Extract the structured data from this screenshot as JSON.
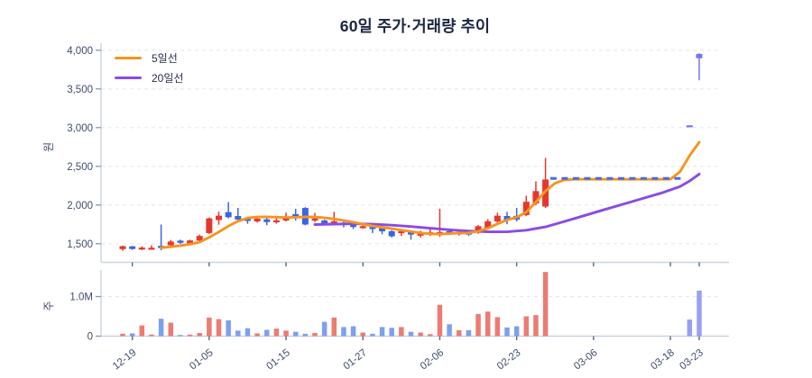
{
  "title": "60일 주가·거래량 추이",
  "legend": {
    "items": [
      {
        "label": "5일선",
        "color": "#f7941e"
      },
      {
        "label": "20일선",
        "color": "#8a4ae6"
      }
    ]
  },
  "price_axis": {
    "unit_label": "원",
    "tick_labels": [
      "4,000",
      "3,500",
      "3,000",
      "2,500",
      "2,000",
      "1,500"
    ],
    "tick_values": [
      4000,
      3500,
      3000,
      2500,
      2000,
      1500
    ]
  },
  "volume_axis": {
    "unit_label": "주",
    "tick_labels": [
      "1.0M",
      "0"
    ],
    "tick_values": [
      1.0,
      0
    ]
  },
  "x_axis": {
    "tick_labels": [
      "12-19",
      "01-05",
      "01-15",
      "01-27",
      "02-06",
      "02-23",
      "03-06",
      "03-18",
      "03-23"
    ],
    "tick_slots": [
      1,
      9,
      17,
      25,
      33,
      41,
      49,
      57,
      60
    ]
  },
  "colors": {
    "up": "#e8362d",
    "down": "#3c64e2",
    "halt_resume": "#7478ea",
    "vol_up": "#ec7b72",
    "vol_down": "#7e9fee",
    "vol_resume": "#9b9ff2",
    "ma5": "#f7941e",
    "ma20": "#8a4ae6",
    "halt_line": "#4a6be0",
    "grid": "#e7e8ec",
    "axis": "#c9d2e2",
    "tick_text": "#3e4c6b",
    "title_text": "#1b2540"
  },
  "chart_data": {
    "type": "candlestick+volume",
    "title": "60일 주가·거래량 추이",
    "ylabel_price": "원",
    "ylabel_volume": "주",
    "price_axis_range": [
      1500,
      4000
    ],
    "volume_axis_range_m": [
      0,
      1.0
    ],
    "num_slots": 61,
    "grid": "dashed-horizontal",
    "legend_position": "top-left",
    "days": [
      {
        "slot": 0,
        "open": 1430,
        "close": 1468,
        "high": 1476,
        "low": 1408,
        "volume_m": 0.06,
        "dir": "u"
      },
      {
        "slot": 1,
        "open": 1466,
        "close": 1432,
        "high": 1472,
        "low": 1422,
        "volume_m": 0.07,
        "dir": "d"
      },
      {
        "slot": 2,
        "open": 1436,
        "close": 1450,
        "high": 1464,
        "low": 1418,
        "volume_m": 0.27,
        "dir": "u"
      },
      {
        "slot": 3,
        "open": 1436,
        "close": 1448,
        "high": 1480,
        "low": 1428,
        "volume_m": 0.04,
        "dir": "u"
      },
      {
        "slot": 4,
        "open": 1472,
        "close": 1445,
        "high": 1748,
        "low": 1415,
        "volume_m": 0.44,
        "dir": "d"
      },
      {
        "slot": 5,
        "open": 1480,
        "close": 1528,
        "high": 1548,
        "low": 1460,
        "volume_m": 0.34,
        "dir": "u"
      },
      {
        "slot": 6,
        "open": 1540,
        "close": 1512,
        "high": 1552,
        "low": 1498,
        "volume_m": 0.03,
        "dir": "d"
      },
      {
        "slot": 7,
        "open": 1506,
        "close": 1542,
        "high": 1552,
        "low": 1494,
        "volume_m": 0.04,
        "dir": "u"
      },
      {
        "slot": 8,
        "open": 1540,
        "close": 1600,
        "high": 1618,
        "low": 1528,
        "volume_m": 0.08,
        "dir": "u"
      },
      {
        "slot": 9,
        "open": 1638,
        "close": 1828,
        "high": 1840,
        "low": 1625,
        "volume_m": 0.47,
        "dir": "u"
      },
      {
        "slot": 10,
        "open": 1806,
        "close": 1862,
        "high": 1914,
        "low": 1746,
        "volume_m": 0.43,
        "dir": "u"
      },
      {
        "slot": 11,
        "open": 1908,
        "close": 1842,
        "high": 2038,
        "low": 1828,
        "volume_m": 0.4,
        "dir": "d"
      },
      {
        "slot": 12,
        "open": 1858,
        "close": 1812,
        "high": 1962,
        "low": 1795,
        "volume_m": 0.14,
        "dir": "d"
      },
      {
        "slot": 13,
        "open": 1822,
        "close": 1795,
        "high": 1848,
        "low": 1758,
        "volume_m": 0.2,
        "dir": "d"
      },
      {
        "slot": 14,
        "open": 1788,
        "close": 1824,
        "high": 1854,
        "low": 1772,
        "volume_m": 0.07,
        "dir": "u"
      },
      {
        "slot": 15,
        "open": 1815,
        "close": 1780,
        "high": 1835,
        "low": 1740,
        "volume_m": 0.16,
        "dir": "d"
      },
      {
        "slot": 16,
        "open": 1782,
        "close": 1802,
        "high": 1852,
        "low": 1760,
        "volume_m": 0.19,
        "dir": "u"
      },
      {
        "slot": 17,
        "open": 1800,
        "close": 1828,
        "high": 1902,
        "low": 1788,
        "volume_m": 0.14,
        "dir": "u"
      },
      {
        "slot": 18,
        "open": 1882,
        "close": 1850,
        "high": 1952,
        "low": 1800,
        "volume_m": 0.11,
        "dir": "d"
      },
      {
        "slot": 19,
        "open": 1962,
        "close": 1748,
        "high": 1972,
        "low": 1738,
        "volume_m": 0.06,
        "dir": "d"
      },
      {
        "slot": 20,
        "open": 1798,
        "close": 1826,
        "high": 1898,
        "low": 1780,
        "volume_m": 0.08,
        "dir": "u"
      },
      {
        "slot": 21,
        "open": 1800,
        "close": 1762,
        "high": 1812,
        "low": 1740,
        "volume_m": 0.36,
        "dir": "d"
      },
      {
        "slot": 22,
        "open": 1768,
        "close": 1790,
        "high": 1912,
        "low": 1752,
        "volume_m": 0.47,
        "dir": "u"
      },
      {
        "slot": 23,
        "open": 1772,
        "close": 1740,
        "high": 1786,
        "low": 1712,
        "volume_m": 0.23,
        "dir": "d"
      },
      {
        "slot": 24,
        "open": 1744,
        "close": 1716,
        "high": 1758,
        "low": 1690,
        "volume_m": 0.25,
        "dir": "d"
      },
      {
        "slot": 25,
        "open": 1712,
        "close": 1726,
        "high": 1740,
        "low": 1695,
        "volume_m": 0.09,
        "dir": "u"
      },
      {
        "slot": 26,
        "open": 1716,
        "close": 1690,
        "high": 1724,
        "low": 1638,
        "volume_m": 0.06,
        "dir": "d"
      },
      {
        "slot": 27,
        "open": 1700,
        "close": 1660,
        "high": 1712,
        "low": 1622,
        "volume_m": 0.23,
        "dir": "d"
      },
      {
        "slot": 28,
        "open": 1662,
        "close": 1596,
        "high": 1674,
        "low": 1582,
        "volume_m": 0.21,
        "dir": "d"
      },
      {
        "slot": 29,
        "open": 1636,
        "close": 1662,
        "high": 1676,
        "low": 1600,
        "volume_m": 0.23,
        "dir": "u"
      },
      {
        "slot": 30,
        "open": 1650,
        "close": 1618,
        "high": 1660,
        "low": 1552,
        "volume_m": 0.11,
        "dir": "d"
      },
      {
        "slot": 31,
        "open": 1612,
        "close": 1630,
        "high": 1668,
        "low": 1580,
        "volume_m": 0.09,
        "dir": "u"
      },
      {
        "slot": 32,
        "open": 1622,
        "close": 1648,
        "high": 1684,
        "low": 1600,
        "volume_m": 0.05,
        "dir": "u"
      },
      {
        "slot": 33,
        "open": 1608,
        "close": 1652,
        "high": 1952,
        "low": 1588,
        "volume_m": 0.79,
        "dir": "u"
      },
      {
        "slot": 34,
        "open": 1662,
        "close": 1630,
        "high": 1676,
        "low": 1612,
        "volume_m": 0.3,
        "dir": "d"
      },
      {
        "slot": 35,
        "open": 1628,
        "close": 1645,
        "high": 1658,
        "low": 1606,
        "volume_m": 0.15,
        "dir": "u"
      },
      {
        "slot": 36,
        "open": 1648,
        "close": 1618,
        "high": 1662,
        "low": 1600,
        "volume_m": 0.15,
        "dir": "d"
      },
      {
        "slot": 37,
        "open": 1648,
        "close": 1726,
        "high": 1742,
        "low": 1628,
        "volume_m": 0.56,
        "dir": "u"
      },
      {
        "slot": 38,
        "open": 1700,
        "close": 1790,
        "high": 1818,
        "low": 1682,
        "volume_m": 0.62,
        "dir": "u"
      },
      {
        "slot": 39,
        "open": 1788,
        "close": 1862,
        "high": 1900,
        "low": 1760,
        "volume_m": 0.48,
        "dir": "u"
      },
      {
        "slot": 40,
        "open": 1858,
        "close": 1800,
        "high": 1912,
        "low": 1752,
        "volume_m": 0.22,
        "dir": "d"
      },
      {
        "slot": 41,
        "open": 1860,
        "close": 1812,
        "high": 1962,
        "low": 1788,
        "volume_m": 0.25,
        "dir": "d"
      },
      {
        "slot": 42,
        "open": 1870,
        "close": 2042,
        "high": 2120,
        "low": 1856,
        "volume_m": 0.5,
        "dir": "u"
      },
      {
        "slot": 43,
        "open": 2020,
        "close": 2180,
        "high": 2305,
        "low": 1998,
        "volume_m": 0.53,
        "dir": "u"
      },
      {
        "slot": 44,
        "open": 1980,
        "close": 2330,
        "high": 2608,
        "low": 1962,
        "volume_m": 1.62,
        "dir": "u"
      },
      {
        "slot": 59,
        "open": 3030,
        "close": 3030,
        "high": 3030,
        "low": 3030,
        "volume_m": 0.42,
        "dir": "h"
      },
      {
        "slot": 60,
        "open": 3952,
        "close": 3896,
        "high": 3960,
        "low": 3612,
        "volume_m": 1.15,
        "dir": "h"
      }
    ],
    "trading_halt": {
      "from_slot": 44.5,
      "to_slot": 58.3,
      "price": 2344
    },
    "ma5": [
      [
        4,
        1448
      ],
      [
        5,
        1460
      ],
      [
        6,
        1476
      ],
      [
        7,
        1494
      ],
      [
        8,
        1520
      ],
      [
        9,
        1582
      ],
      [
        10,
        1652
      ],
      [
        11,
        1728
      ],
      [
        12,
        1792
      ],
      [
        13,
        1832
      ],
      [
        14,
        1845
      ],
      [
        15,
        1848
      ],
      [
        16,
        1843
      ],
      [
        17,
        1838
      ],
      [
        18,
        1842
      ],
      [
        19,
        1848
      ],
      [
        20,
        1845
      ],
      [
        21,
        1835
      ],
      [
        22,
        1820
      ],
      [
        23,
        1800
      ],
      [
        24,
        1778
      ],
      [
        25,
        1752
      ],
      [
        26,
        1730
      ],
      [
        27,
        1712
      ],
      [
        28,
        1694
      ],
      [
        29,
        1676
      ],
      [
        30,
        1658
      ],
      [
        31,
        1640
      ],
      [
        32,
        1628
      ],
      [
        33,
        1624
      ],
      [
        34,
        1630
      ],
      [
        35,
        1638
      ],
      [
        36,
        1640
      ],
      [
        37,
        1660
      ],
      [
        38,
        1700
      ],
      [
        39,
        1756
      ],
      [
        40,
        1808
      ],
      [
        41,
        1842
      ],
      [
        42,
        1908
      ],
      [
        43,
        2040
      ],
      [
        44,
        2180
      ],
      [
        45,
        2282
      ],
      [
        46,
        2326
      ],
      [
        47,
        2332
      ],
      [
        50,
        2332
      ],
      [
        53,
        2332
      ],
      [
        56,
        2332
      ],
      [
        57,
        2334
      ],
      [
        58,
        2430
      ],
      [
        59,
        2640
      ],
      [
        60,
        2812
      ]
    ],
    "ma20": [
      [
        20,
        1748
      ],
      [
        22,
        1754
      ],
      [
        24,
        1758
      ],
      [
        26,
        1752
      ],
      [
        28,
        1740
      ],
      [
        30,
        1722
      ],
      [
        32,
        1700
      ],
      [
        34,
        1680
      ],
      [
        36,
        1664
      ],
      [
        38,
        1654
      ],
      [
        40,
        1654
      ],
      [
        42,
        1674
      ],
      [
        44,
        1718
      ],
      [
        46,
        1788
      ],
      [
        48,
        1862
      ],
      [
        50,
        1936
      ],
      [
        52,
        2008
      ],
      [
        54,
        2080
      ],
      [
        56,
        2152
      ],
      [
        58,
        2240
      ],
      [
        59,
        2310
      ],
      [
        60,
        2400
      ]
    ]
  }
}
